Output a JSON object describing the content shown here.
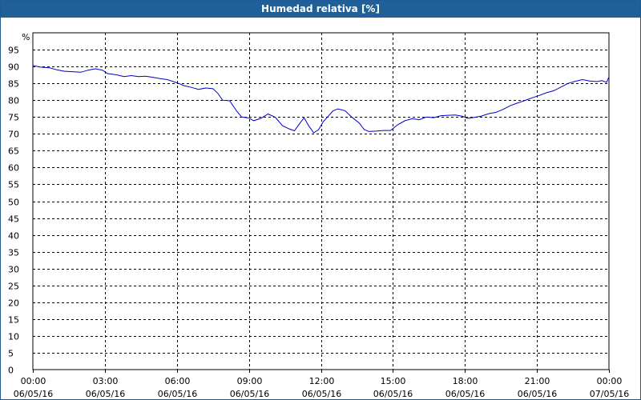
{
  "window": {
    "title": "Humedad relativa [%]"
  },
  "chart_data": {
    "type": "line",
    "title": "Humedad relativa [%]",
    "ylabel": "%",
    "xlabel": "",
    "ylim": [
      0,
      100
    ],
    "xlim": [
      0,
      24
    ],
    "grid": true,
    "grid_style": "dashed",
    "y_ticks": [
      0,
      5,
      10,
      15,
      20,
      25,
      30,
      35,
      40,
      45,
      50,
      55,
      60,
      65,
      70,
      75,
      80,
      85,
      90,
      95
    ],
    "x_ticks": [
      {
        "hours": 0,
        "time": "00:00",
        "date": "06/05/16"
      },
      {
        "hours": 3,
        "time": "03:00",
        "date": "06/05/16"
      },
      {
        "hours": 6,
        "time": "06:00",
        "date": "06/05/16"
      },
      {
        "hours": 9,
        "time": "09:00",
        "date": "06/05/16"
      },
      {
        "hours": 12,
        "time": "12:00",
        "date": "06/05/16"
      },
      {
        "hours": 15,
        "time": "15:00",
        "date": "06/05/16"
      },
      {
        "hours": 18,
        "time": "18:00",
        "date": "06/05/16"
      },
      {
        "hours": 21,
        "time": "21:00",
        "date": "06/05/16"
      },
      {
        "hours": 24,
        "time": "00:00",
        "date": "07/05/16"
      }
    ],
    "colors": {
      "line": "#0000c8",
      "grid": "#000000",
      "title_bar": "#1f6099"
    },
    "series": [
      {
        "x_unit": "hours since 06/05/16 00:00",
        "points": [
          [
            0,
            90.3
          ],
          [
            0.3,
            89.8
          ],
          [
            0.7,
            89.6
          ],
          [
            1.0,
            89.0
          ],
          [
            1.3,
            88.6
          ],
          [
            1.7,
            88.4
          ],
          [
            2.0,
            88.3
          ],
          [
            2.3,
            88.9
          ],
          [
            2.6,
            89.3
          ],
          [
            2.9,
            88.9
          ],
          [
            3.1,
            87.9
          ],
          [
            3.5,
            87.5
          ],
          [
            3.8,
            87.0
          ],
          [
            4.1,
            87.3
          ],
          [
            4.4,
            87.0
          ],
          [
            4.7,
            87.1
          ],
          [
            5.0,
            86.8
          ],
          [
            5.3,
            86.4
          ],
          [
            5.6,
            86.1
          ],
          [
            5.9,
            85.4
          ],
          [
            6.1,
            84.9
          ],
          [
            6.3,
            84.3
          ],
          [
            6.6,
            83.8
          ],
          [
            6.9,
            83.2
          ],
          [
            7.2,
            83.6
          ],
          [
            7.5,
            83.4
          ],
          [
            7.7,
            82.1
          ],
          [
            7.9,
            80.0
          ],
          [
            8.2,
            79.8
          ],
          [
            8.5,
            76.7
          ],
          [
            8.7,
            75.0
          ],
          [
            9.0,
            74.7
          ],
          [
            9.2,
            73.9
          ],
          [
            9.5,
            74.6
          ],
          [
            9.8,
            75.9
          ],
          [
            10.1,
            74.9
          ],
          [
            10.4,
            72.4
          ],
          [
            10.7,
            71.4
          ],
          [
            10.9,
            70.9
          ],
          [
            11.1,
            72.9
          ],
          [
            11.3,
            74.8
          ],
          [
            11.5,
            72.3
          ],
          [
            11.7,
            70.3
          ],
          [
            11.9,
            71.2
          ],
          [
            12.1,
            73.6
          ],
          [
            12.3,
            75.2
          ],
          [
            12.5,
            76.8
          ],
          [
            12.7,
            77.4
          ],
          [
            13.0,
            76.9
          ],
          [
            13.3,
            74.9
          ],
          [
            13.6,
            73.2
          ],
          [
            13.8,
            71.3
          ],
          [
            14.0,
            70.7
          ],
          [
            14.3,
            70.8
          ],
          [
            14.6,
            71.0
          ],
          [
            14.9,
            71.0
          ],
          [
            15.2,
            72.7
          ],
          [
            15.5,
            73.9
          ],
          [
            15.8,
            74.5
          ],
          [
            16.1,
            74.2
          ],
          [
            16.4,
            75.0
          ],
          [
            16.7,
            74.8
          ],
          [
            17.0,
            75.4
          ],
          [
            17.3,
            75.5
          ],
          [
            17.6,
            75.6
          ],
          [
            17.9,
            75.2
          ],
          [
            18.1,
            74.6
          ],
          [
            18.4,
            74.9
          ],
          [
            18.7,
            75.3
          ],
          [
            19.0,
            76.0
          ],
          [
            19.3,
            76.4
          ],
          [
            19.6,
            77.3
          ],
          [
            19.9,
            78.4
          ],
          [
            20.2,
            79.2
          ],
          [
            20.5,
            79.9
          ],
          [
            20.8,
            80.7
          ],
          [
            21.1,
            81.4
          ],
          [
            21.4,
            82.2
          ],
          [
            21.7,
            82.8
          ],
          [
            22.0,
            83.9
          ],
          [
            22.3,
            85.0
          ],
          [
            22.6,
            85.6
          ],
          [
            22.9,
            86.1
          ],
          [
            23.2,
            85.7
          ],
          [
            23.5,
            85.5
          ],
          [
            23.7,
            85.8
          ],
          [
            23.9,
            85.3
          ],
          [
            24.0,
            86.9
          ]
        ]
      }
    ]
  }
}
